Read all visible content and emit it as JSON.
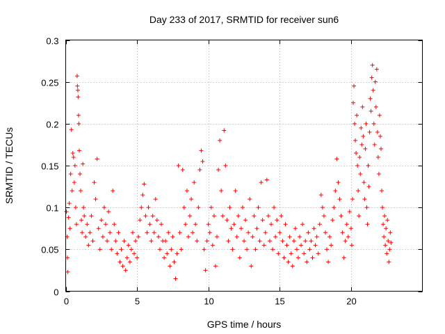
{
  "chart_data": {
    "type": "scatter",
    "title": "Day 233 of 2017, SRMTID for receiver sun6",
    "xlabel": "GPS time / hours",
    "ylabel": "SRMTID / TECUs",
    "xlim": [
      0,
      25
    ],
    "ylim": [
      0,
      0.3
    ],
    "xticks": [
      0,
      5,
      10,
      15,
      20
    ],
    "xtick_labels": [
      "0",
      "5",
      "10",
      "15",
      "20"
    ],
    "yticks": [
      0,
      0.05,
      0.1,
      0.15,
      0.2,
      0.25,
      0.3
    ],
    "ytick_labels": [
      "0",
      "0.05",
      "0.1",
      "0.15",
      "0.2",
      "0.25",
      "0.3"
    ],
    "grid": true,
    "marker": "+",
    "color": "#ff0000",
    "series": [
      {
        "name": "SRMTID",
        "points": [
          [
            0.05,
            0.095
          ],
          [
            0.1,
            0.065
          ],
          [
            0.12,
            0.04
          ],
          [
            0.15,
            0.023
          ],
          [
            0.2,
            0.088
          ],
          [
            0.25,
            0.105
          ],
          [
            0.3,
            0.075
          ],
          [
            0.35,
            0.14
          ],
          [
            0.4,
            0.193
          ],
          [
            0.45,
            0.12
          ],
          [
            0.5,
            0.165
          ],
          [
            0.55,
            0.16
          ],
          [
            0.6,
            0.13
          ],
          [
            0.65,
            0.15
          ],
          [
            0.7,
            0.1
          ],
          [
            0.75,
            0.08
          ],
          [
            0.8,
            0.257
          ],
          [
            0.82,
            0.245
          ],
          [
            0.85,
            0.24
          ],
          [
            0.87,
            0.232
          ],
          [
            0.9,
            0.21
          ],
          [
            0.92,
            0.2
          ],
          [
            0.95,
            0.168
          ],
          [
            1.0,
            0.14
          ],
          [
            1.05,
            0.12
          ],
          [
            1.1,
            0.085
          ],
          [
            1.15,
            0.07
          ],
          [
            1.2,
            0.152
          ],
          [
            1.25,
            0.1
          ],
          [
            1.3,
            0.09
          ],
          [
            1.4,
            0.065
          ],
          [
            1.5,
            0.08
          ],
          [
            1.6,
            0.055
          ],
          [
            1.7,
            0.07
          ],
          [
            1.8,
            0.09
          ],
          [
            1.9,
            0.06
          ],
          [
            2.0,
            0.13
          ],
          [
            2.1,
            0.11
          ],
          [
            2.2,
            0.158
          ],
          [
            2.3,
            0.075
          ],
          [
            2.4,
            0.05
          ],
          [
            2.5,
            0.085
          ],
          [
            2.6,
            0.065
          ],
          [
            2.7,
            0.1
          ],
          [
            2.8,
            0.08
          ],
          [
            2.9,
            0.06
          ],
          [
            3.0,
            0.095
          ],
          [
            3.1,
            0.07
          ],
          [
            3.2,
            0.05
          ],
          [
            3.3,
            0.12
          ],
          [
            3.4,
            0.08
          ],
          [
            3.5,
            0.06
          ],
          [
            3.6,
            0.045
          ],
          [
            3.7,
            0.07
          ],
          [
            3.8,
            0.035
          ],
          [
            3.9,
            0.05
          ],
          [
            4.0,
            0.03
          ],
          [
            4.1,
            0.06
          ],
          [
            4.2,
            0.025
          ],
          [
            4.3,
            0.04
          ],
          [
            4.4,
            0.055
          ],
          [
            4.5,
            0.035
          ],
          [
            4.6,
            0.05
          ],
          [
            4.7,
            0.07
          ],
          [
            4.8,
            0.045
          ],
          [
            4.9,
            0.06
          ],
          [
            5.0,
            0.04
          ],
          [
            5.1,
            0.065
          ],
          [
            5.2,
            0.085
          ],
          [
            5.3,
            0.1
          ],
          [
            5.4,
            0.115
          ],
          [
            5.5,
            0.128
          ],
          [
            5.6,
            0.09
          ],
          [
            5.7,
            0.07
          ],
          [
            5.8,
            0.1
          ],
          [
            5.9,
            0.08
          ],
          [
            6.0,
            0.06
          ],
          [
            6.1,
            0.09
          ],
          [
            6.2,
            0.07
          ],
          [
            6.3,
            0.11
          ],
          [
            6.4,
            0.085
          ],
          [
            6.5,
            0.065
          ],
          [
            6.6,
            0.05
          ],
          [
            6.7,
            0.08
          ],
          [
            6.8,
            0.06
          ],
          [
            6.9,
            0.04
          ],
          [
            7.0,
            0.06
          ],
          [
            7.1,
            0.045
          ],
          [
            7.2,
            0.07
          ],
          [
            7.3,
            0.03
          ],
          [
            7.4,
            0.05
          ],
          [
            7.5,
            0.065
          ],
          [
            7.6,
            0.035
          ],
          [
            7.7,
            0.015
          ],
          [
            7.8,
            0.045
          ],
          [
            7.9,
            0.15
          ],
          [
            8.0,
            0.07
          ],
          [
            8.1,
            0.05
          ],
          [
            8.2,
            0.145
          ],
          [
            8.3,
            0.1
          ],
          [
            8.4,
            0.08
          ],
          [
            8.5,
            0.12
          ],
          [
            8.6,
            0.065
          ],
          [
            8.7,
            0.09
          ],
          [
            8.8,
            0.11
          ],
          [
            8.9,
            0.07
          ],
          [
            9.0,
            0.13
          ],
          [
            9.1,
            0.08
          ],
          [
            9.2,
            0.06
          ],
          [
            9.3,
            0.1
          ],
          [
            9.4,
            0.145
          ],
          [
            9.5,
            0.168
          ],
          [
            9.6,
            0.155
          ],
          [
            9.7,
            0.05
          ],
          [
            9.8,
            0.025
          ],
          [
            9.9,
            0.06
          ],
          [
            10.0,
            0.08
          ],
          [
            10.1,
            0.07
          ],
          [
            10.2,
            0.1
          ],
          [
            10.3,
            0.055
          ],
          [
            10.4,
            0.09
          ],
          [
            10.5,
            0.03
          ],
          [
            10.6,
            0.065
          ],
          [
            10.7,
            0.145
          ],
          [
            10.8,
            0.18
          ],
          [
            10.9,
            0.12
          ],
          [
            11.0,
            0.09
          ],
          [
            11.1,
            0.192
          ],
          [
            11.2,
            0.15
          ],
          [
            11.3,
            0.085
          ],
          [
            11.4,
            0.06
          ],
          [
            11.5,
            0.1
          ],
          [
            11.6,
            0.075
          ],
          [
            11.7,
            0.05
          ],
          [
            11.8,
            0.08
          ],
          [
            11.9,
            0.12
          ],
          [
            12.0,
            0.065
          ],
          [
            12.1,
            0.09
          ],
          [
            12.2,
            0.04
          ],
          [
            12.3,
            0.075
          ],
          [
            12.4,
            0.1
          ],
          [
            12.5,
            0.06
          ],
          [
            12.6,
            0.085
          ],
          [
            12.7,
            0.05
          ],
          [
            12.8,
            0.07
          ],
          [
            12.9,
            0.11
          ],
          [
            13.0,
            0.03
          ],
          [
            13.1,
            0.065
          ],
          [
            13.2,
            0.09
          ],
          [
            13.3,
            0.05
          ],
          [
            13.4,
            0.075
          ],
          [
            13.5,
            0.1
          ],
          [
            13.6,
            0.06
          ],
          [
            13.7,
            0.13
          ],
          [
            13.8,
            0.085
          ],
          [
            13.9,
            0.055
          ],
          [
            14.0,
            0.07
          ],
          [
            14.1,
            0.133
          ],
          [
            14.2,
            0.09
          ],
          [
            14.3,
            0.06
          ],
          [
            14.4,
            0.08
          ],
          [
            14.5,
            0.05
          ],
          [
            14.6,
            0.1
          ],
          [
            14.7,
            0.065
          ],
          [
            14.8,
            0.085
          ],
          [
            14.9,
            0.045
          ],
          [
            15.0,
            0.07
          ],
          [
            15.1,
            0.09
          ],
          [
            15.2,
            0.06
          ],
          [
            15.3,
            0.04
          ],
          [
            15.4,
            0.08
          ],
          [
            15.5,
            0.055
          ],
          [
            15.6,
            0.035
          ],
          [
            15.7,
            0.065
          ],
          [
            15.8,
            0.045
          ],
          [
            15.9,
            0.03
          ],
          [
            16.0,
            0.06
          ],
          [
            16.1,
            0.075
          ],
          [
            16.2,
            0.05
          ],
          [
            16.3,
            0.04
          ],
          [
            16.4,
            0.065
          ],
          [
            16.5,
            0.055
          ],
          [
            16.6,
            0.08
          ],
          [
            16.7,
            0.045
          ],
          [
            16.8,
            0.06
          ],
          [
            16.9,
            0.035
          ],
          [
            17.0,
            0.07
          ],
          [
            17.1,
            0.05
          ],
          [
            17.2,
            0.06
          ],
          [
            17.3,
            0.04
          ],
          [
            17.4,
            0.075
          ],
          [
            17.5,
            0.055
          ],
          [
            17.6,
            0.065
          ],
          [
            17.7,
            0.045
          ],
          [
            17.8,
            0.08
          ],
          [
            17.9,
            0.115
          ],
          [
            18.0,
            0.1
          ],
          [
            18.1,
            0.09
          ],
          [
            18.2,
            0.07
          ],
          [
            18.3,
            0.05
          ],
          [
            18.4,
            0.035
          ],
          [
            18.5,
            0.065
          ],
          [
            18.6,
            0.055
          ],
          [
            18.7,
            0.085
          ],
          [
            18.8,
            0.1
          ],
          [
            18.9,
            0.12
          ],
          [
            19.0,
            0.158
          ],
          [
            19.1,
            0.13
          ],
          [
            19.2,
            0.11
          ],
          [
            19.3,
            0.09
          ],
          [
            19.4,
            0.07
          ],
          [
            19.5,
            0.04
          ],
          [
            19.6,
            0.06
          ],
          [
            19.7,
            0.08
          ],
          [
            19.8,
            0.065
          ],
          [
            19.9,
            0.095
          ],
          [
            20.0,
            0.075
          ],
          [
            20.05,
            0.055
          ],
          [
            20.1,
            0.11
          ],
          [
            20.15,
            0.225
          ],
          [
            20.2,
            0.245
          ],
          [
            20.25,
            0.2
          ],
          [
            20.3,
            0.18
          ],
          [
            20.35,
            0.165
          ],
          [
            20.4,
            0.21
          ],
          [
            20.45,
            0.15
          ],
          [
            20.5,
            0.12
          ],
          [
            20.55,
            0.09
          ],
          [
            20.6,
            0.16
          ],
          [
            20.65,
            0.14
          ],
          [
            20.7,
            0.195
          ],
          [
            20.75,
            0.175
          ],
          [
            20.8,
            0.22
          ],
          [
            20.85,
            0.185
          ],
          [
            20.9,
            0.13
          ],
          [
            20.95,
            0.11
          ],
          [
            21.0,
            0.17
          ],
          [
            21.05,
            0.2
          ],
          [
            21.1,
            0.1
          ],
          [
            21.15,
            0.08
          ],
          [
            21.2,
            0.15
          ],
          [
            21.25,
            0.125
          ],
          [
            21.3,
            0.19
          ],
          [
            21.35,
            0.23
          ],
          [
            21.4,
            0.215
          ],
          [
            21.45,
            0.255
          ],
          [
            21.5,
            0.27
          ],
          [
            21.55,
            0.24
          ],
          [
            21.6,
            0.2
          ],
          [
            21.65,
            0.175
          ],
          [
            21.7,
            0.25
          ],
          [
            21.75,
            0.22
          ],
          [
            21.8,
            0.265
          ],
          [
            21.85,
            0.19
          ],
          [
            21.9,
            0.16
          ],
          [
            21.95,
            0.14
          ],
          [
            22.0,
            0.21
          ],
          [
            22.05,
            0.185
          ],
          [
            22.1,
            0.17
          ],
          [
            22.15,
            0.12
          ],
          [
            22.2,
            0.1
          ],
          [
            22.25,
            0.08
          ],
          [
            22.3,
            0.065
          ],
          [
            22.35,
            0.09
          ],
          [
            22.4,
            0.055
          ],
          [
            22.45,
            0.075
          ],
          [
            22.5,
            0.045
          ],
          [
            22.55,
            0.085
          ],
          [
            22.6,
            0.06
          ],
          [
            22.65,
            0.035
          ],
          [
            22.7,
            0.05
          ],
          [
            22.75,
            0.07
          ],
          [
            22.8,
            0.058
          ]
        ]
      }
    ]
  }
}
